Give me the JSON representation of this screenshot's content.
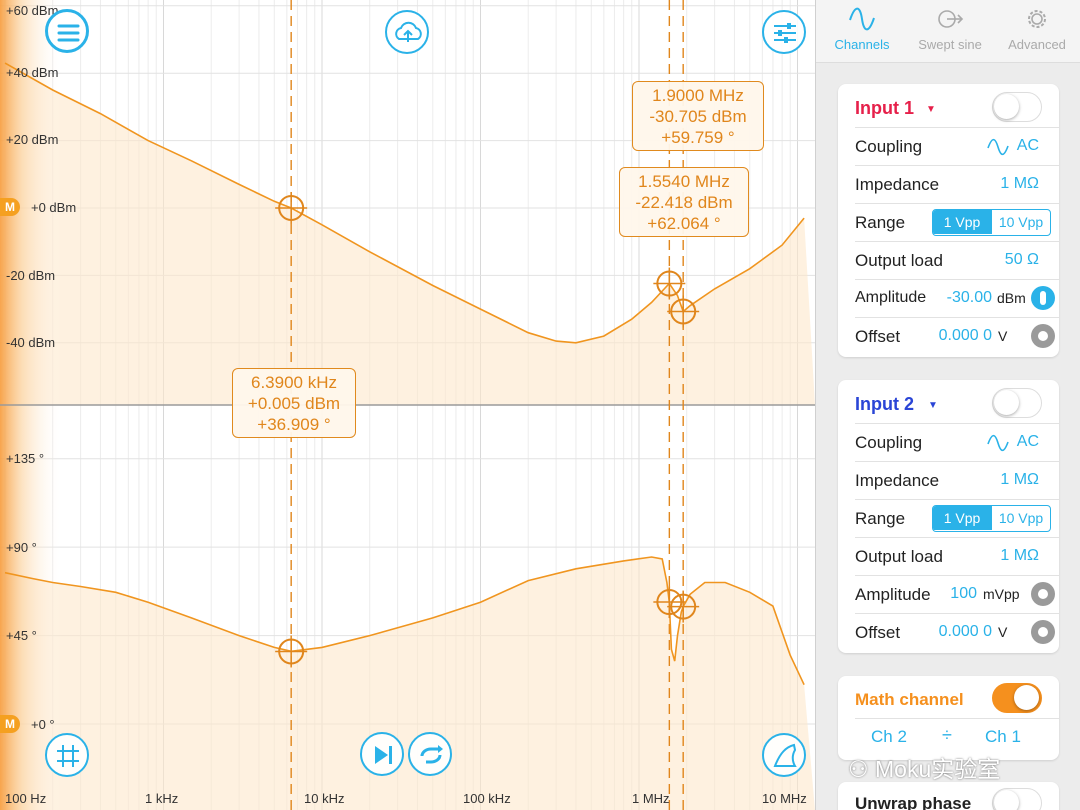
{
  "plot": {
    "magnitude_axis_labels": [
      "+60 dBm",
      "+40 dBm",
      "+20 dBm",
      "+0 dBm",
      "-20 dBm",
      "-40 dBm"
    ],
    "phase_axis_labels": [
      "+135 °",
      "+90 °",
      "+45 °",
      "+0 °"
    ],
    "frequency_axis_labels": [
      "100 Hz",
      "1 kHz",
      "10 kHz",
      "100 kHz",
      "1 MHz",
      "10 MHz"
    ],
    "marker_badge": "M",
    "accent_color": "#f0951f",
    "icon_color": "#2ab2e8",
    "cursor_annotations": [
      {
        "freq": "1.9000 MHz",
        "mag": "-30.705 dBm",
        "phase": "+59.759 °"
      },
      {
        "freq": "1.5540 MHz",
        "mag": "-22.418 dBm",
        "phase": "+62.064 °"
      },
      {
        "freq": "6.3900 kHz",
        "mag": "+0.005 dBm",
        "phase": "+36.909 °"
      }
    ],
    "icons": [
      "menu-icon",
      "cloud-upload-icon",
      "settings-sliders-icon",
      "grid-icon",
      "play-pause-icon",
      "repeat-icon",
      "autoscale-icon"
    ]
  },
  "tabs": [
    {
      "label": "Channels",
      "icon": "sine-wave-icon",
      "active": true
    },
    {
      "label": "Swept sine",
      "icon": "swept-sine-icon",
      "active": false
    },
    {
      "label": "Advanced",
      "icon": "gear-icon",
      "active": false
    }
  ],
  "input1": {
    "title": "Input 1",
    "title_color": "#e6204a",
    "enabled": false,
    "coupling_label": "Coupling",
    "coupling_value": "AC",
    "impedance_label": "Impedance",
    "impedance_value": "1 MΩ",
    "range_label": "Range",
    "range_options": [
      "1 Vpp",
      "10 Vpp"
    ],
    "range_selected": "1 Vpp",
    "output_load_label": "Output load",
    "output_load_value": "50 Ω",
    "amplitude_label": "Amplitude",
    "amplitude_value": "-30.00",
    "amplitude_unit": "dBm",
    "offset_label": "Offset",
    "offset_value": "0.000 0",
    "offset_unit": "V"
  },
  "input2": {
    "title": "Input 2",
    "title_color": "#2a45d6",
    "enabled": false,
    "coupling_label": "Coupling",
    "coupling_value": "AC",
    "impedance_label": "Impedance",
    "impedance_value": "1 MΩ",
    "range_label": "Range",
    "range_options": [
      "1 Vpp",
      "10 Vpp"
    ],
    "range_selected": "1 Vpp",
    "output_load_label": "Output load",
    "output_load_value": "1 MΩ",
    "amplitude_label": "Amplitude",
    "amplitude_value": "100",
    "amplitude_unit": "mVpp",
    "offset_label": "Offset",
    "offset_value": "0.000 0",
    "offset_unit": "V"
  },
  "math": {
    "title": "Math channel",
    "enabled": true,
    "operand1": "Ch 2",
    "operator": "÷",
    "operand2": "Ch 1"
  },
  "unwrap": {
    "label": "Unwrap phase",
    "enabled": false
  },
  "watermark": "Moku实验室"
}
